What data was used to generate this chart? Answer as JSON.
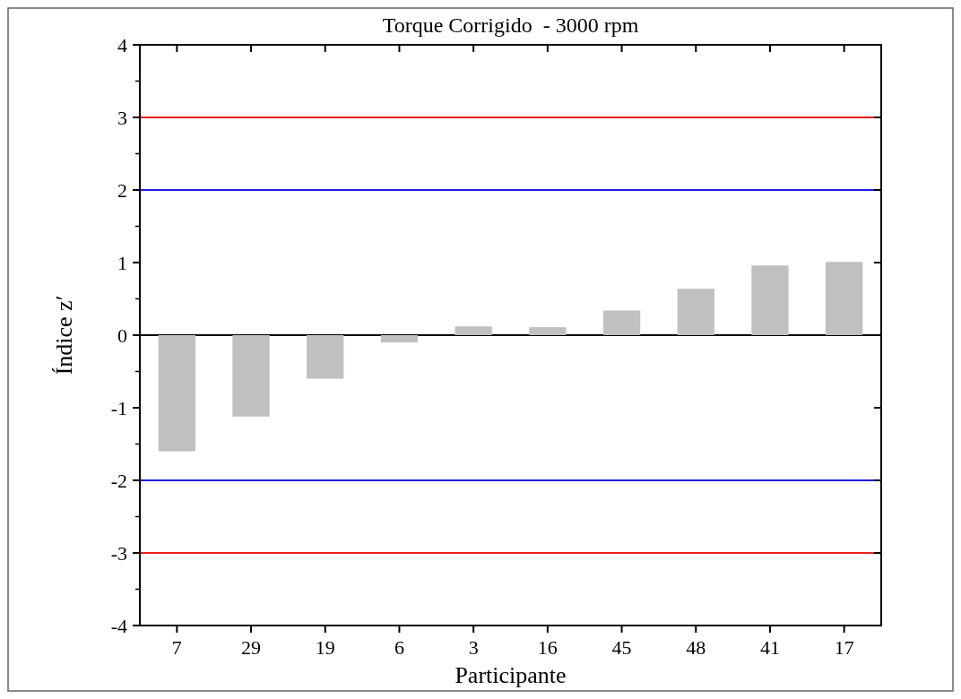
{
  "chart_data": {
    "type": "bar",
    "title": "Torque Corrigido  - 3000 rpm",
    "xlabel": "Participante",
    "ylabel": "Índice z′",
    "categories": [
      "7",
      "29",
      "19",
      "6",
      "3",
      "16",
      "45",
      "48",
      "41",
      "17"
    ],
    "values": [
      -1.6,
      -1.12,
      -0.6,
      -0.1,
      0.12,
      0.11,
      0.34,
      0.64,
      0.96,
      1.01
    ],
    "color": "#c0c0c0",
    "ylim": [
      -4,
      4
    ],
    "yticks": [
      -4,
      -3,
      -2,
      -1,
      0,
      1,
      2,
      3,
      4
    ],
    "ref_lines": [
      {
        "axis": "y",
        "value": 3,
        "color": "#e8201c"
      },
      {
        "axis": "y",
        "value": 2,
        "color": "#1c1ce0"
      },
      {
        "axis": "y",
        "value": 0,
        "color": "#000000"
      },
      {
        "axis": "y",
        "value": -2,
        "color": "#1c1ce0"
      },
      {
        "axis": "y",
        "value": -3,
        "color": "#e8201c"
      }
    ],
    "grid": false
  }
}
